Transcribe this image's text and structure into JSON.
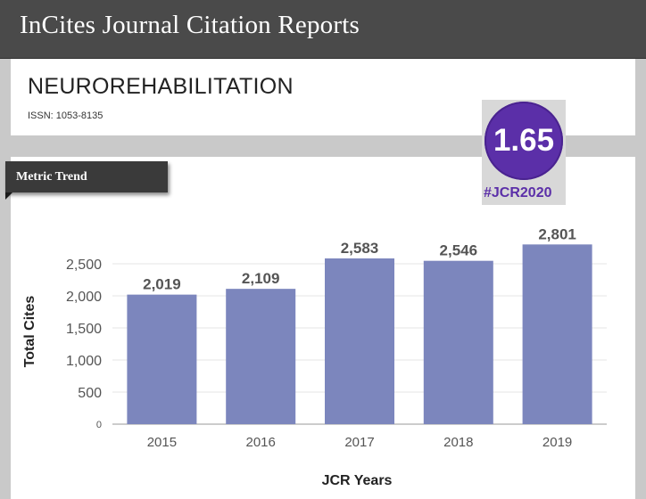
{
  "header": {
    "title": "InCites Journal Citation Reports"
  },
  "journal": {
    "name": "NEUROREHABILITATION",
    "issn": "ISSN: 1053-8135"
  },
  "metric_tab": {
    "label": "Metric Trend"
  },
  "badge": {
    "value": "1.65",
    "tag": "#JCR2020",
    "color": "#5b2fa8"
  },
  "chart_data": {
    "type": "bar",
    "title": "",
    "categories": [
      "2015",
      "2016",
      "2017",
      "2018",
      "2019"
    ],
    "values": [
      2019,
      2109,
      2583,
      2546,
      2801
    ],
    "value_labels": [
      "2,019",
      "2,109",
      "2,583",
      "2,546",
      "2,801"
    ],
    "xlabel": "JCR Years",
    "ylabel": "Total Cites",
    "yticks": [
      0,
      500,
      1000,
      1500,
      2000,
      2500
    ],
    "ytick_labels": [
      "0",
      "500",
      "1,000",
      "1,500",
      "2,000",
      "2,500"
    ],
    "ylim": [
      0,
      3000
    ],
    "bar_color": "#7c86bd",
    "grid": true
  }
}
